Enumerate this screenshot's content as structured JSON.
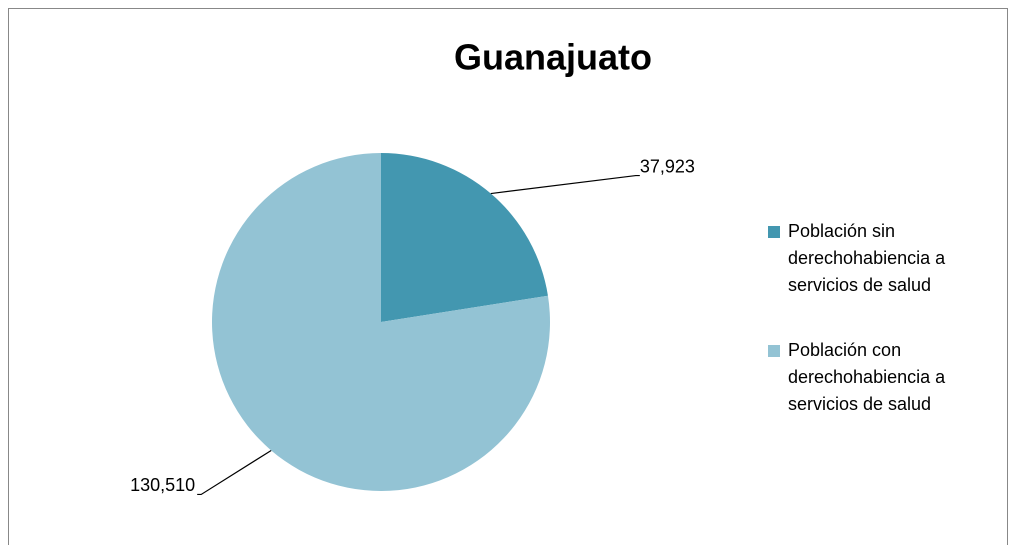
{
  "chart_data": {
    "type": "pie",
    "title": "Guanajuato",
    "categories": [
      "Población sin derechohabiencia a servicios de salud",
      "Población con derechohabiencia a servicios de salud"
    ],
    "values": [
      37923,
      130510
    ],
    "value_labels": [
      "37,923",
      "130,510"
    ],
    "colors": [
      "#4397b0",
      "#93c3d4"
    ],
    "legend": "right"
  }
}
